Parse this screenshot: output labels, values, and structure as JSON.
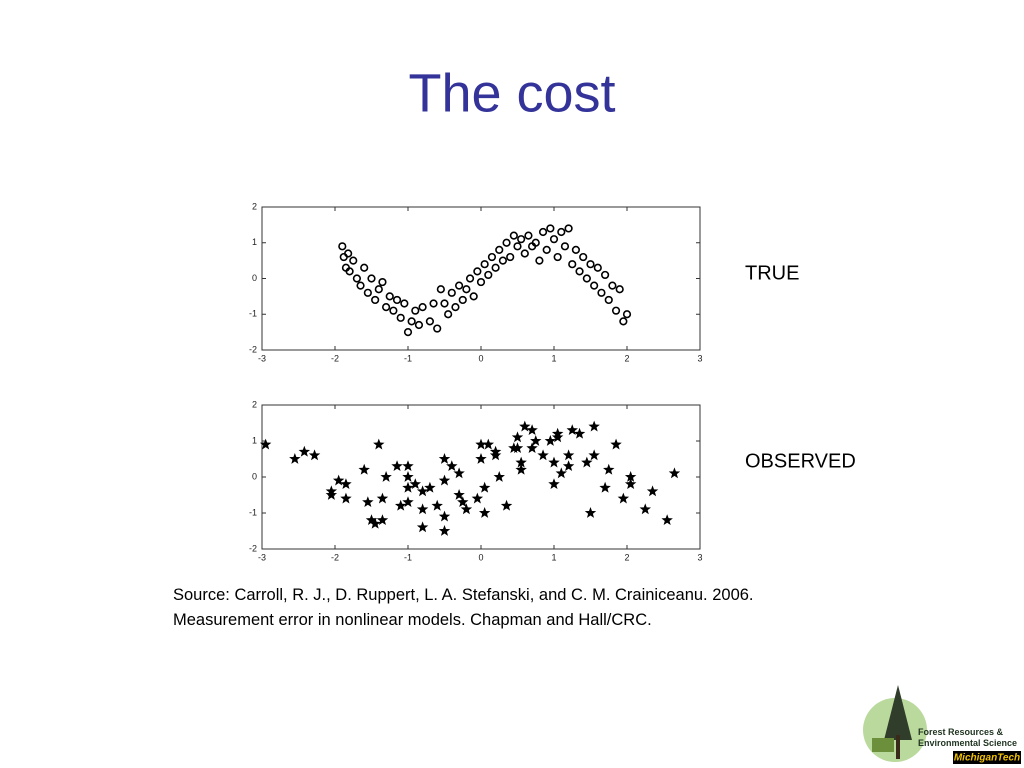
{
  "slide": {
    "title": "The cost",
    "source": [
      "Source: Carroll, R. J., D. Ruppert, L. A. Stefanski, and C. M. Crainiceanu. 2006.",
      "Measurement error in nonlinear models. Chapman and Hall/CRC."
    ],
    "logo": [
      "Forest Resources &",
      "Environmental Science",
      "MichiganTech"
    ]
  },
  "chart_data": [
    {
      "type": "scatter",
      "label": "TRUE",
      "marker": "circle",
      "color": "#000000",
      "xlim": [
        -3,
        3
      ],
      "ylim": [
        -2,
        2
      ],
      "xticks": [
        -3,
        -2,
        -1,
        0,
        1,
        2,
        3
      ],
      "yticks": [
        -2,
        -1,
        0,
        1,
        2
      ],
      "x": [
        -1.9,
        -1.88,
        -1.85,
        -1.82,
        -1.8,
        -1.75,
        -1.7,
        -1.65,
        -1.6,
        -1.55,
        -1.5,
        -1.45,
        -1.4,
        -1.35,
        -1.3,
        -1.25,
        -1.2,
        -1.15,
        -1.1,
        -1.05,
        -1.0,
        -0.95,
        -0.9,
        -0.85,
        -0.8,
        -0.7,
        -0.65,
        -0.6,
        -0.55,
        -0.5,
        -0.45,
        -0.4,
        -0.35,
        -0.3,
        -0.25,
        -0.2,
        -0.15,
        -0.1,
        -0.05,
        0,
        0.05,
        0.1,
        0.15,
        0.2,
        0.25,
        0.3,
        0.35,
        0.4,
        0.45,
        0.5,
        0.55,
        0.6,
        0.65,
        0.7,
        0.75,
        0.8,
        0.85,
        0.9,
        0.95,
        1.0,
        1.05,
        1.1,
        1.15,
        1.2,
        1.25,
        1.3,
        1.35,
        1.4,
        1.45,
        1.5,
        1.55,
        1.6,
        1.65,
        1.7,
        1.75,
        1.8,
        1.85,
        1.9,
        1.95,
        2.0
      ],
      "values": [
        0.9,
        0.6,
        0.3,
        0.7,
        0.2,
        0.5,
        0.0,
        -0.2,
        0.3,
        -0.4,
        0.0,
        -0.6,
        -0.3,
        -0.1,
        -0.8,
        -0.5,
        -0.9,
        -0.6,
        -1.1,
        -0.7,
        -1.5,
        -1.2,
        -0.9,
        -1.3,
        -0.8,
        -1.2,
        -0.7,
        -1.4,
        -0.3,
        -0.7,
        -1.0,
        -0.4,
        -0.8,
        -0.2,
        -0.6,
        -0.3,
        0.0,
        -0.5,
        0.2,
        -0.1,
        0.4,
        0.1,
        0.6,
        0.3,
        0.8,
        0.5,
        1.0,
        0.6,
        1.2,
        0.9,
        1.1,
        0.7,
        1.2,
        0.9,
        1.0,
        0.5,
        1.3,
        0.8,
        1.4,
        1.1,
        0.6,
        1.3,
        0.9,
        1.4,
        0.4,
        0.8,
        0.2,
        0.6,
        0.0,
        0.4,
        -0.2,
        0.3,
        -0.4,
        0.1,
        -0.6,
        -0.2,
        -0.9,
        -0.3,
        -1.2,
        -1.0
      ]
    },
    {
      "type": "scatter",
      "label": "OBSERVED",
      "marker": "star",
      "color": "#000000",
      "xlim": [
        -3,
        3
      ],
      "ylim": [
        -2,
        2
      ],
      "xticks": [
        -3,
        -2,
        -1,
        0,
        1,
        2,
        3
      ],
      "yticks": [
        -2,
        -1,
        0,
        1,
        2
      ],
      "x": [
        -1.4,
        -2.28,
        -1.15,
        -2.42,
        -1.6,
        -2.55,
        -1.3,
        -1.85,
        -1.0,
        -2.05,
        -1.0,
        -1.85,
        -0.7,
        -1.95,
        -1.1,
        -2.05,
        -0.8,
        -1.35,
        -0.5,
        -1.55,
        -0.5,
        -1.35,
        -0.2,
        -1.45,
        -0.6,
        -1.5,
        -0.25,
        -0.8,
        0.05,
        -1.0,
        0.05,
        -0.8,
        0.35,
        -0.9,
        -0.05,
        -1.0,
        0.25,
        -0.3,
        0.55,
        -0.5,
        0.55,
        -0.3,
        0.85,
        -0.4,
        0.45,
        -0.5,
        0.75,
        0.2,
        1.05,
        0.0,
        1.05,
        0.2,
        1.35,
        0.1,
        0.95,
        0.0,
        1.25,
        0.7,
        1.55,
        0.5,
        1.55,
        0.7,
        1.85,
        0.6,
        1.45,
        0.5,
        1.75,
        1.2,
        2.05,
        1.0,
        2.05,
        1.2,
        2.35,
        1.1,
        1.95,
        1.0,
        2.25,
        1.7,
        2.55,
        1.5,
        -2.95,
        2.65
      ],
      "values": [
        0.9,
        0.6,
        0.3,
        0.7,
        0.2,
        0.5,
        0.0,
        -0.2,
        0.3,
        -0.4,
        0.0,
        -0.6,
        -0.3,
        -0.1,
        -0.8,
        -0.5,
        -0.9,
        -0.6,
        -1.1,
        -0.7,
        -1.5,
        -1.2,
        -0.9,
        -1.3,
        -0.8,
        -1.2,
        -0.7,
        -1.4,
        -0.3,
        -0.7,
        -1.0,
        -0.4,
        -0.8,
        -0.2,
        -0.6,
        -0.3,
        0.0,
        -0.5,
        0.2,
        -0.1,
        0.4,
        0.1,
        0.6,
        0.3,
        0.8,
        0.5,
        1.0,
        0.6,
        1.2,
        0.9,
        1.1,
        0.7,
        1.2,
        0.9,
        1.0,
        0.5,
        1.3,
        0.8,
        1.4,
        1.1,
        0.6,
        1.3,
        0.9,
        1.4,
        0.4,
        0.8,
        0.2,
        0.6,
        0.0,
        0.4,
        -0.2,
        0.3,
        -0.4,
        0.1,
        -0.6,
        -0.2,
        -0.9,
        -0.3,
        -1.2,
        -1.0,
        0.9,
        0.1
      ]
    }
  ]
}
